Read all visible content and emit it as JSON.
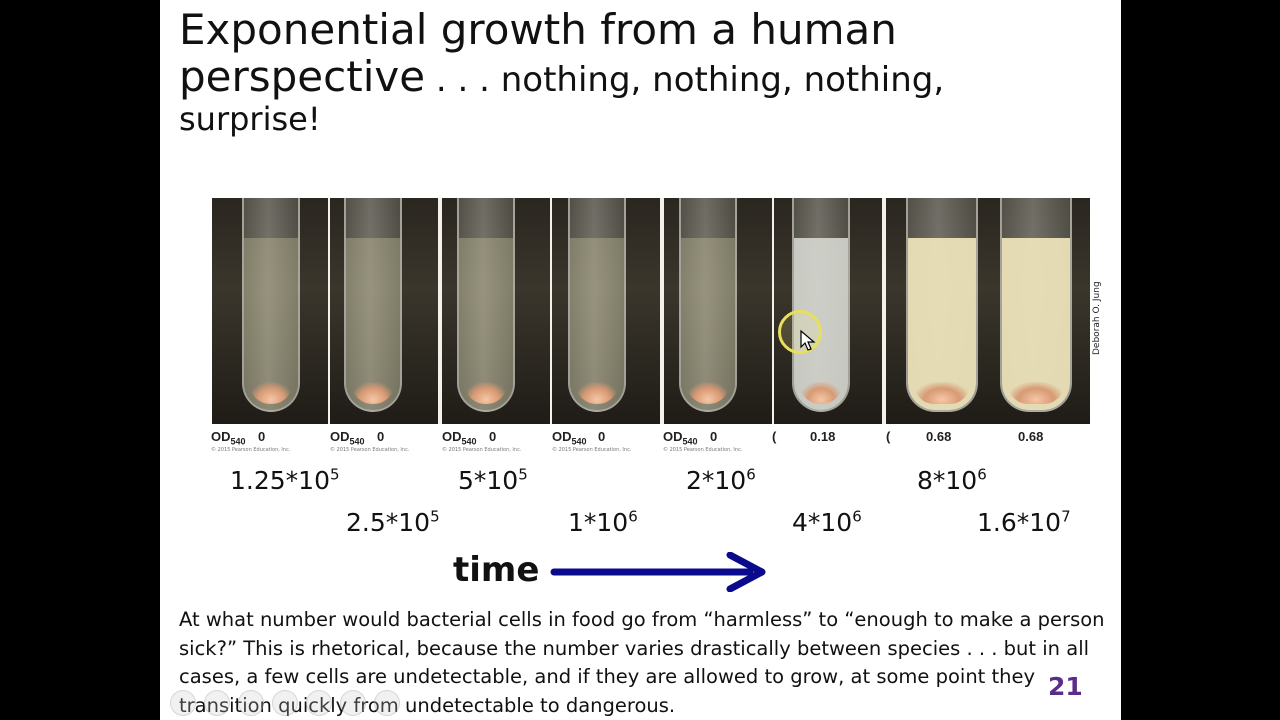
{
  "title": {
    "line1": "Exponential growth from a human",
    "line2_big": "perspective",
    "line2_small": " . . . nothing, nothing, nothing,",
    "line3": "surprise!"
  },
  "tubes": [
    {
      "od_label": "OD",
      "od_sub": "540",
      "od_value": "0",
      "copyright": "© 2015 Pearson Education, Inc."
    },
    {
      "od_label": "OD",
      "od_sub": "540",
      "od_value": "0",
      "copyright": "© 2015 Pearson Education, Inc."
    },
    {
      "od_label": "OD",
      "od_sub": "540",
      "od_value": "0",
      "copyright": "© 2015 Pearson Education, Inc."
    },
    {
      "od_label": "OD",
      "od_sub": "540",
      "od_value": "0",
      "copyright": "© 2015 Pearson Education, Inc."
    },
    {
      "od_label": "OD",
      "od_sub": "540",
      "od_value": "0",
      "copyright": "© 2015 Pearson Education, Inc."
    },
    {
      "od_label": "(",
      "od_sub": "",
      "od_value": "0.18",
      "copyright": ""
    },
    {
      "od_label": "(",
      "od_sub": "",
      "od_value": "0.68",
      "copyright": ""
    },
    {
      "od_label": "",
      "od_sub": "",
      "od_value": "0.68",
      "copyright": ""
    }
  ],
  "credit": "Deborah O. Jung",
  "cell_counts": [
    {
      "base": "1.25*10",
      "exp": "5"
    },
    {
      "base": "2.5*10",
      "exp": "5"
    },
    {
      "base": "5*10",
      "exp": "5"
    },
    {
      "base": "1*10",
      "exp": "6"
    },
    {
      "base": "2*10",
      "exp": "6"
    },
    {
      "base": "4*10",
      "exp": "6"
    },
    {
      "base": "8*10",
      "exp": "6"
    },
    {
      "base": "1.6*10",
      "exp": "7"
    }
  ],
  "time_label": "time",
  "arrow_color": "#0a0a8c",
  "body_text": "At what number would bacterial cells in food go from “harmless” to “enough to make a person sick?”  This is rhetorical, because the number varies drastically between species . . . but in all cases, a few cells are undetectable, and if they are allowed to grow, at some point they transition quickly from undetectable to dangerous.",
  "page_number": "21"
}
